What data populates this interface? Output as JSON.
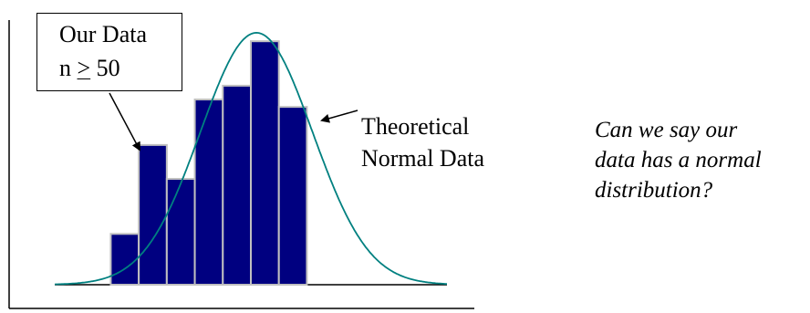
{
  "chart_data": {
    "type": "bar",
    "title": "",
    "xlabel": "",
    "ylabel": "",
    "bin_edges": [
      1,
      2,
      3,
      4,
      5,
      6,
      7,
      8
    ],
    "values": [
      4.8,
      13.2,
      10.0,
      17.5,
      18.8,
      23.0,
      16.8
    ],
    "ylim": [
      0,
      25
    ],
    "xlim": [
      -1,
      13
    ],
    "bar_color": "#000080",
    "bar_edge_color": "#c0c0c0",
    "grid": false,
    "series": [
      {
        "name": "Our Data",
        "kind": "histogram"
      },
      {
        "name": "Theoretical Normal Data",
        "kind": "normal-curve",
        "mean": 6.2,
        "sd": 2.0,
        "peak": 23.8,
        "color": "#008080"
      }
    ],
    "annotations": {
      "data_callout": {
        "line1": "Our Data",
        "n_symbol": "n",
        "ge_symbol": ">",
        "threshold": "50"
      },
      "curve_label": {
        "line1": "Theoretical",
        "line2": "Normal Data"
      },
      "question": {
        "line1": "Can we say our",
        "line2": "data has a normal",
        "line3": "distribution?"
      }
    }
  }
}
